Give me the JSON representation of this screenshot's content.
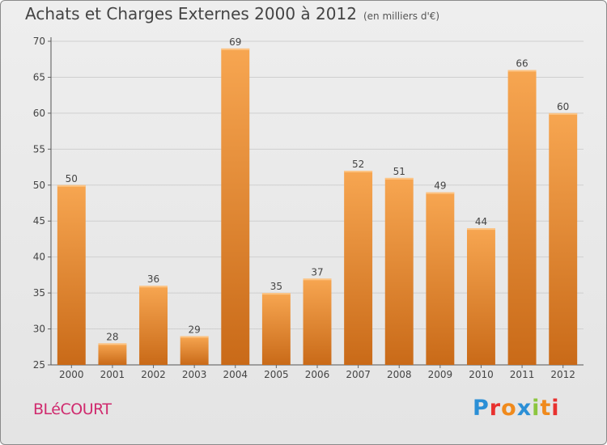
{
  "header": {
    "title": "Achats et Charges Externes 2000 à 2012",
    "unit": "(en milliers d'€)"
  },
  "footer": {
    "commune": "BLéCOURT",
    "logo": "Proxiti",
    "logo_colors": [
      "#2b8fd6",
      "#e8312f",
      "#f08a1c",
      "#2b8fd6",
      "#8cc63f",
      "#f08a1c",
      "#e8312f"
    ]
  },
  "colors": {
    "bar_top": "#f7a651",
    "bar_bottom": "#c96a18",
    "grid": "#cfcfcf",
    "axis_text": "#444444",
    "commune": "#d02a6e"
  },
  "chart_data": {
    "type": "bar",
    "title": "Achats et Charges Externes 2000 à 2012",
    "categories": [
      "2000",
      "2001",
      "2002",
      "2003",
      "2004",
      "2005",
      "2006",
      "2007",
      "2008",
      "2009",
      "2010",
      "2011",
      "2012"
    ],
    "values": [
      50,
      28,
      36,
      29,
      69,
      35,
      37,
      52,
      51,
      49,
      44,
      66,
      60
    ],
    "ylim": [
      25,
      70
    ],
    "yticks": [
      25,
      30,
      35,
      40,
      45,
      50,
      55,
      60,
      65,
      70
    ],
    "grid": true,
    "data_labels": true
  }
}
